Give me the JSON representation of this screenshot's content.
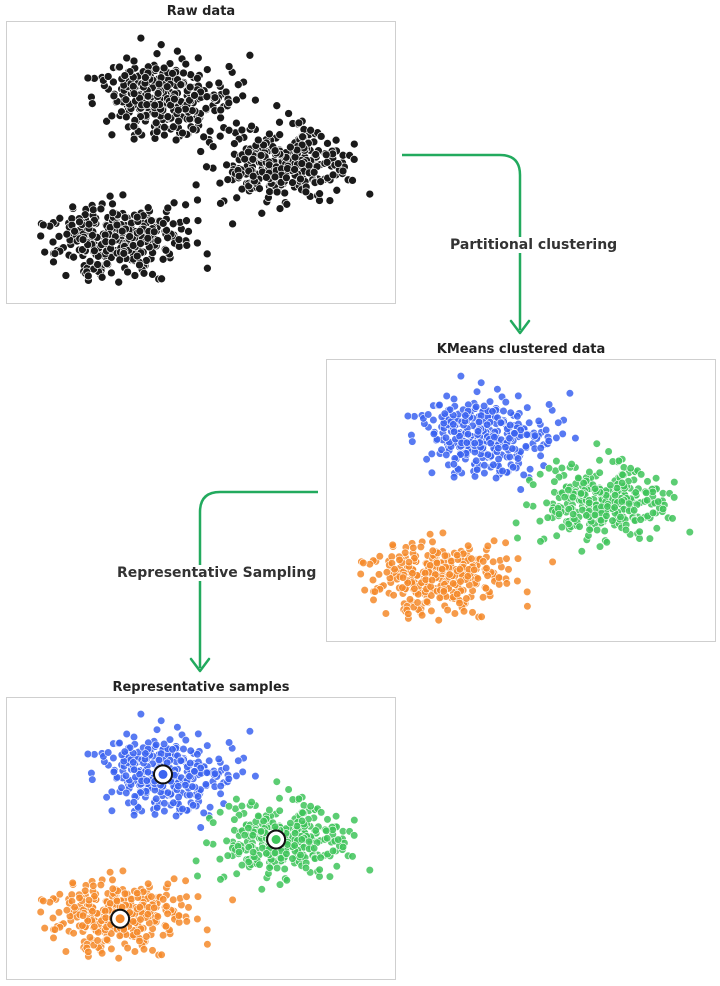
{
  "panels": {
    "raw": {
      "title": "Raw data"
    },
    "kmeans": {
      "title": "KMeans clustered data"
    },
    "samples": {
      "title": "Representative samples"
    }
  },
  "steps": {
    "partitional": {
      "label": "Partitional clustering"
    },
    "sampling": {
      "label": "Representative Sampling"
    }
  },
  "colors": {
    "raw_point": "#1a1a1a",
    "arrow": "#22aa5e",
    "cluster_blue": "#3b63f0",
    "cluster_green": "#3fc45a",
    "cluster_orange": "#f5892a",
    "border": "#cfcfcf"
  },
  "chart_data": {
    "type": "scatter",
    "clusters": [
      {
        "color_key": "cluster_blue",
        "center": [
          0.4,
          0.27
        ],
        "spread": [
          0.085,
          0.065
        ],
        "n": 330
      },
      {
        "color_key": "cluster_green",
        "center": [
          0.7,
          0.5
        ],
        "spread": [
          0.085,
          0.065
        ],
        "n": 330
      },
      {
        "color_key": "cluster_orange",
        "center": [
          0.29,
          0.77
        ],
        "spread": [
          0.085,
          0.065
        ],
        "n": 330
      }
    ],
    "representatives": [
      {
        "cluster": 0,
        "point": [
          0.4,
          0.27
        ]
      },
      {
        "cluster": 1,
        "point": [
          0.69,
          0.5
        ]
      },
      {
        "cluster": 2,
        "point": [
          0.29,
          0.78
        ]
      }
    ]
  }
}
